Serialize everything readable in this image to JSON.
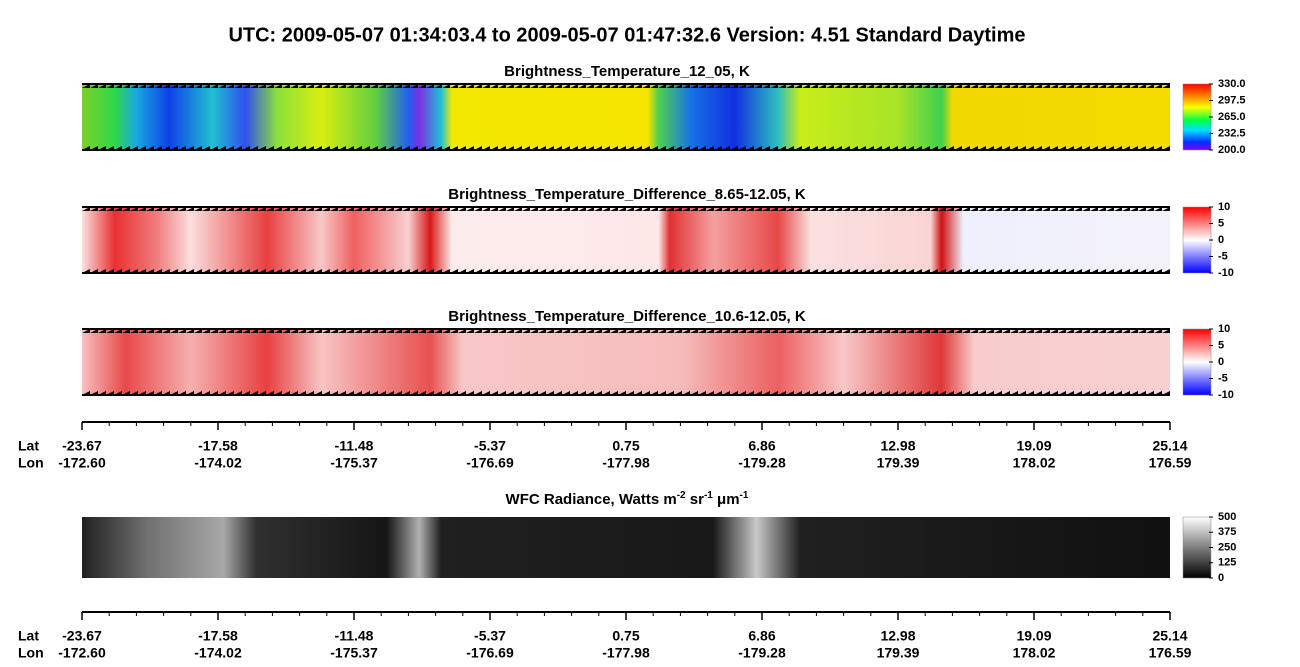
{
  "title": "UTC:  2009-05-07   01:34:03.4  to  2009-05-07   01:47:32.6    Version: 4.51  Standard Daytime",
  "panels": [
    {
      "title": "Brightness_Temperature_12_05, K",
      "colorbar_ticks": [
        "330.0",
        "297.5",
        "265.0",
        "232.5",
        "200.0"
      ]
    },
    {
      "title": "Brightness_Temperature_Difference_8.65-12.05, K",
      "colorbar_ticks": [
        "10",
        "5",
        "0",
        "-5",
        "-10"
      ]
    },
    {
      "title": "Brightness_Temperature_Difference_10.6-12.05, K",
      "colorbar_ticks": [
        "10",
        "5",
        "0",
        "-5",
        "-10"
      ]
    }
  ],
  "wfc": {
    "title_parts": [
      "WFC Radiance, Watts m",
      "-2",
      " sr",
      "-1",
      " μm",
      "-1"
    ],
    "colorbar_ticks": [
      "500",
      "375",
      "250",
      "125",
      "0"
    ]
  },
  "axes": [
    {
      "lat_label": "Lat",
      "lon_label": "Lon",
      "lat": [
        "-23.67",
        "-17.58",
        "-11.48",
        "-5.37",
        "0.75",
        "6.86",
        "12.98",
        "19.09",
        "25.14"
      ],
      "lon": [
        "-172.60",
        "-174.02",
        "-175.37",
        "-176.69",
        "-177.98",
        "-179.28",
        "179.39",
        "178.02",
        "176.59"
      ]
    },
    {
      "lat_label": "Lat",
      "lon_label": "Lon",
      "lat": [
        "-23.67",
        "-17.58",
        "-11.48",
        "-5.37",
        "0.75",
        "6.86",
        "12.98",
        "19.09",
        "25.14"
      ],
      "lon": [
        "-172.60",
        "-174.02",
        "-175.37",
        "-176.69",
        "-177.98",
        "-179.28",
        "179.39",
        "178.02",
        "176.59"
      ]
    }
  ]
}
